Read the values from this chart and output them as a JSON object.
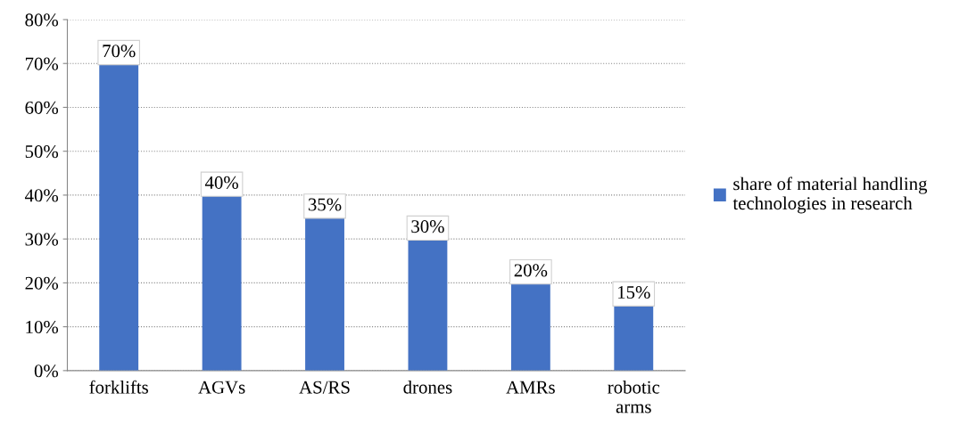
{
  "chart_data": {
    "type": "bar",
    "categories": [
      "forklifts",
      "AGVs",
      "AS/RS",
      "drones",
      "AMRs",
      "robotic\narms"
    ],
    "series": [
      {
        "name": "share of material handling\ntechnologies in research",
        "color": "#4472c4",
        "values": [
          70,
          40,
          35,
          30,
          20,
          15
        ],
        "value_labels": [
          "70%",
          "40%",
          "35%",
          "30%",
          "20%",
          "15%"
        ]
      }
    ],
    "ylim": [
      0,
      80
    ],
    "yticks": [
      {
        "value": 0,
        "label": "0%"
      },
      {
        "value": 10,
        "label": "10%"
      },
      {
        "value": 20,
        "label": "20%"
      },
      {
        "value": 30,
        "label": "30%"
      },
      {
        "value": 40,
        "label": "40%"
      },
      {
        "value": 50,
        "label": "50%"
      },
      {
        "value": 60,
        "label": "60%"
      },
      {
        "value": 70,
        "label": "70%"
      },
      {
        "value": 80,
        "label": "80%"
      }
    ],
    "grid": "y",
    "legend": "right"
  }
}
